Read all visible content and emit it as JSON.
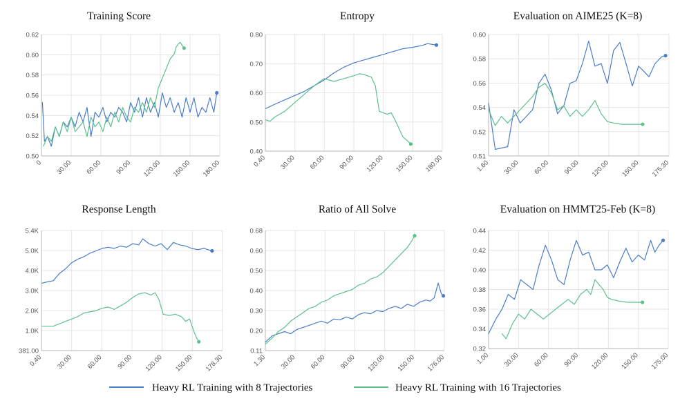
{
  "legend": [
    {
      "label": "Heavy RL Training with 8 Trajectories",
      "color": "#4a7cc9"
    },
    {
      "label": "Heavy RL Training with 16 Trajectories",
      "color": "#5cc08c"
    }
  ],
  "chart_data": [
    {
      "type": "line",
      "title": "Training Score",
      "xlabel": "",
      "ylabel": "",
      "xlim": [
        0,
        180
      ],
      "ylim": [
        0.5,
        0.625
      ],
      "xticks": [
        "0",
        "30.00",
        "60.00",
        "90.00",
        "120.00",
        "150.00",
        "180.00"
      ],
      "yticks": [
        "0.50",
        "0.52",
        "0.54",
        "0.56",
        "0.58",
        "0.60",
        "0.62"
      ],
      "grid": true,
      "series": [
        {
          "name": "Heavy RL Training with 8 Trajectories",
          "color": "#4a7cc9",
          "x": [
            1,
            3,
            6,
            10,
            14,
            18,
            22,
            26,
            30,
            34,
            38,
            42,
            46,
            50,
            54,
            58,
            62,
            66,
            70,
            74,
            78,
            82,
            86,
            90,
            94,
            98,
            102,
            106,
            110,
            114,
            118,
            122,
            126,
            130,
            134,
            138,
            142,
            146,
            150,
            154,
            158,
            162,
            166,
            170,
            174,
            177
          ],
          "y": [
            0.555,
            0.515,
            0.52,
            0.51,
            0.53,
            0.52,
            0.535,
            0.53,
            0.54,
            0.53,
            0.545,
            0.535,
            0.55,
            0.52,
            0.545,
            0.54,
            0.55,
            0.535,
            0.545,
            0.54,
            0.55,
            0.545,
            0.535,
            0.555,
            0.545,
            0.56,
            0.54,
            0.56,
            0.545,
            0.555,
            0.54,
            0.565,
            0.55,
            0.56,
            0.545,
            0.555,
            0.54,
            0.56,
            0.545,
            0.56,
            0.54,
            0.55,
            0.545,
            0.56,
            0.545,
            0.565
          ]
        },
        {
          "name": "Heavy RL Training with 16 Trajectories",
          "color": "#5cc08c",
          "x": [
            2,
            6,
            10,
            14,
            18,
            22,
            26,
            30,
            34,
            38,
            42,
            46,
            50,
            54,
            58,
            62,
            66,
            70,
            74,
            78,
            82,
            86,
            90,
            94,
            98,
            102,
            106,
            110,
            114,
            118,
            122,
            126,
            130,
            134,
            136,
            138,
            140,
            142,
            144
          ],
          "y": [
            0.51,
            0.52,
            0.515,
            0.53,
            0.52,
            0.535,
            0.525,
            0.54,
            0.525,
            0.53,
            0.535,
            0.52,
            0.54,
            0.53,
            0.535,
            0.525,
            0.54,
            0.53,
            0.545,
            0.535,
            0.55,
            0.54,
            0.535,
            0.55,
            0.545,
            0.555,
            0.545,
            0.56,
            0.55,
            0.57,
            0.58,
            0.59,
            0.6,
            0.605,
            0.612,
            0.615,
            0.617,
            0.614,
            0.611
          ]
        }
      ]
    },
    {
      "type": "line",
      "title": "Entropy",
      "xlabel": "",
      "ylabel": "",
      "xlim": [
        0.4,
        180
      ],
      "ylim": [
        0.39,
        0.8
      ],
      "xticks": [
        "0.40",
        "30.00",
        "60.00",
        "90.00",
        "120.00",
        "150.00",
        "180.00"
      ],
      "yticks": [
        "0.40",
        "0.50",
        "0.60",
        "0.70",
        "0.80"
      ],
      "grid": true,
      "series": [
        {
          "name": "Heavy RL Training with 8 Trajectories",
          "color": "#4a7cc9",
          "x": [
            1,
            10,
            20,
            30,
            40,
            50,
            60,
            70,
            80,
            90,
            100,
            110,
            120,
            130,
            140,
            150,
            160,
            165,
            170,
            174
          ],
          "y": [
            0.54,
            0.555,
            0.57,
            0.585,
            0.6,
            0.62,
            0.64,
            0.665,
            0.685,
            0.7,
            0.71,
            0.72,
            0.73,
            0.74,
            0.75,
            0.755,
            0.762,
            0.768,
            0.765,
            0.763
          ]
        },
        {
          "name": "Heavy RL Training with 16 Trajectories",
          "color": "#5cc08c",
          "x": [
            1,
            5,
            10,
            20,
            30,
            40,
            50,
            60,
            70,
            80,
            90,
            96,
            100,
            104,
            108,
            112,
            116,
            120,
            124,
            128,
            132,
            136,
            140,
            145,
            148
          ],
          "y": [
            0.5,
            0.495,
            0.51,
            0.53,
            0.56,
            0.59,
            0.62,
            0.645,
            0.635,
            0.645,
            0.655,
            0.662,
            0.66,
            0.655,
            0.65,
            0.62,
            0.53,
            0.525,
            0.52,
            0.525,
            0.5,
            0.47,
            0.44,
            0.425,
            0.415
          ]
        }
      ]
    },
    {
      "type": "line",
      "title": "Evaluation on AIME25 (K=8)",
      "xlabel": "",
      "ylabel": "",
      "xlim": [
        1.6,
        175.3
      ],
      "ylim": [
        0.51,
        0.602
      ],
      "xticks": [
        "1.60",
        "30.00",
        "60.00",
        "90.00",
        "120.00",
        "150.00",
        "175.30"
      ],
      "yticks": [
        "0.51",
        "0.52",
        "0.54",
        "0.56",
        "0.58",
        "0.60"
      ],
      "grid": true,
      "series": [
        {
          "name": "Heavy RL Training with 8 Trajectories",
          "color": "#4a7cc9",
          "x": [
            1.6,
            8,
            14,
            20,
            26,
            32,
            38,
            44,
            50,
            56,
            62,
            68,
            74,
            80,
            86,
            92,
            98,
            104,
            110,
            116,
            122,
            128,
            134,
            140,
            146,
            150,
            156,
            162,
            168,
            172
          ],
          "y": [
            0.55,
            0.515,
            0.516,
            0.517,
            0.545,
            0.535,
            0.54,
            0.545,
            0.565,
            0.572,
            0.56,
            0.542,
            0.548,
            0.565,
            0.567,
            0.58,
            0.597,
            0.578,
            0.58,
            0.565,
            0.59,
            0.596,
            0.58,
            0.563,
            0.578,
            0.575,
            0.57,
            0.58,
            0.585,
            0.586
          ]
        },
        {
          "name": "Heavy RL Training with 16 Trajectories",
          "color": "#5cc08c",
          "x": [
            1.6,
            8,
            14,
            20,
            26,
            32,
            38,
            44,
            50,
            56,
            62,
            68,
            74,
            80,
            86,
            92,
            98,
            104,
            110,
            116,
            122,
            130,
            140,
            150
          ],
          "y": [
            0.545,
            0.533,
            0.54,
            0.535,
            0.54,
            0.545,
            0.55,
            0.555,
            0.562,
            0.565,
            0.558,
            0.545,
            0.548,
            0.54,
            0.545,
            0.54,
            0.545,
            0.552,
            0.542,
            0.536,
            0.535,
            0.534,
            0.534,
            0.534
          ]
        }
      ]
    },
    {
      "type": "line",
      "title": "Response Length",
      "xlabel": "",
      "ylabel": "",
      "xlim": [
        0.4,
        178.3
      ],
      "ylim": [
        381,
        5400
      ],
      "xticks": [
        "0.40",
        "30.00",
        "60.00",
        "90.00",
        "120.00",
        "150.00",
        "178.30"
      ],
      "yticks": [
        "381.00",
        "1.0K",
        "2.0K",
        "3.0K",
        "4.0K",
        "5.0K",
        "5.4K"
      ],
      "grid": true,
      "series": [
        {
          "name": "Heavy RL Training with 8 Trajectories",
          "color": "#4a7cc9",
          "x": [
            1,
            6,
            12,
            18,
            24,
            30,
            36,
            42,
            48,
            54,
            60,
            66,
            72,
            78,
            84,
            90,
            96,
            100,
            106,
            112,
            118,
            124,
            130,
            136,
            142,
            148,
            154,
            160,
            164,
            168
          ],
          "y": [
            3200,
            3250,
            3300,
            3600,
            3800,
            4050,
            4200,
            4300,
            4450,
            4550,
            4650,
            4700,
            4650,
            4750,
            4700,
            4850,
            4800,
            5050,
            4850,
            4750,
            4850,
            4600,
            4900,
            4800,
            4750,
            4650,
            4600,
            4650,
            4600,
            4550
          ]
        },
        {
          "name": "Heavy RL Training with 16 Trajectories",
          "color": "#5cc08c",
          "x": [
            1,
            6,
            12,
            18,
            24,
            30,
            36,
            42,
            48,
            54,
            60,
            66,
            72,
            78,
            84,
            90,
            96,
            102,
            108,
            112,
            116,
            120,
            126,
            132,
            138,
            142,
            146,
            150,
            153,
            155
          ],
          "y": [
            1400,
            1400,
            1400,
            1500,
            1600,
            1700,
            1800,
            1950,
            2000,
            2050,
            2150,
            2200,
            2100,
            2250,
            2400,
            2600,
            2750,
            2800,
            2700,
            2800,
            2500,
            1900,
            1850,
            1900,
            1800,
            1600,
            1700,
            1200,
            900,
            750
          ]
        }
      ]
    },
    {
      "type": "line",
      "title": "Ratio of All Solve",
      "xlabel": "",
      "ylabel": "",
      "xlim": [
        1.3,
        176
      ],
      "ylim": [
        0.11,
        0.68
      ],
      "xticks": [
        "1.30",
        "30.00",
        "60.00",
        "90.00",
        "120.00",
        "150.00",
        "176.00"
      ],
      "yticks": [
        "0.11",
        "0.20",
        "0.30",
        "0.40",
        "0.50",
        "0.60",
        "0.68"
      ],
      "grid": true,
      "series": [
        {
          "name": "Heavy RL Training with 8 Trajectories",
          "color": "#4a7cc9",
          "x": [
            1.3,
            8,
            14,
            20,
            26,
            32,
            38,
            44,
            50,
            56,
            62,
            68,
            74,
            80,
            86,
            92,
            98,
            104,
            110,
            116,
            122,
            128,
            134,
            140,
            146,
            152,
            158,
            162,
            166,
            170,
            173,
            175
          ],
          "y": [
            0.15,
            0.18,
            0.19,
            0.2,
            0.19,
            0.21,
            0.22,
            0.23,
            0.24,
            0.25,
            0.24,
            0.26,
            0.255,
            0.27,
            0.26,
            0.28,
            0.29,
            0.285,
            0.3,
            0.295,
            0.31,
            0.32,
            0.31,
            0.33,
            0.32,
            0.34,
            0.35,
            0.345,
            0.36,
            0.43,
            0.38,
            0.37
          ]
        },
        {
          "name": "Heavy RL Training with 16 Trajectories",
          "color": "#5cc08c",
          "x": [
            1.3,
            8,
            14,
            20,
            26,
            32,
            38,
            44,
            50,
            56,
            62,
            68,
            74,
            80,
            86,
            92,
            98,
            104,
            110,
            116,
            122,
            128,
            134,
            140,
            144,
            147
          ],
          "y": [
            0.14,
            0.17,
            0.2,
            0.22,
            0.25,
            0.27,
            0.29,
            0.31,
            0.32,
            0.34,
            0.35,
            0.37,
            0.38,
            0.39,
            0.4,
            0.42,
            0.43,
            0.45,
            0.46,
            0.48,
            0.51,
            0.54,
            0.57,
            0.6,
            0.63,
            0.655
          ]
        }
      ]
    },
    {
      "type": "line",
      "title": "Evaluation on HMMT25-Feb (K=8)",
      "xlabel": "",
      "ylabel": "",
      "xlim": [
        1.0,
        175.0
      ],
      "ylim": [
        0.32,
        0.44
      ],
      "xticks": [
        "1.00",
        "30.00",
        "60.00",
        "90.00",
        "120.00",
        "150.00",
        "175.00"
      ],
      "yticks": [
        "0.32",
        "0.34",
        "0.36",
        "0.38",
        "0.40",
        "0.42",
        "0.44"
      ],
      "grid": true,
      "series": [
        {
          "name": "Heavy RL Training with 8 Trajectories",
          "color": "#4a7cc9",
          "x": [
            1,
            8,
            14,
            20,
            26,
            32,
            38,
            44,
            50,
            56,
            62,
            68,
            74,
            80,
            86,
            92,
            98,
            104,
            110,
            116,
            122,
            128,
            134,
            140,
            146,
            152,
            158,
            162,
            166,
            170
          ],
          "y": [
            0.335,
            0.35,
            0.36,
            0.375,
            0.37,
            0.39,
            0.385,
            0.38,
            0.405,
            0.425,
            0.41,
            0.39,
            0.385,
            0.41,
            0.43,
            0.415,
            0.418,
            0.4,
            0.4,
            0.405,
            0.392,
            0.408,
            0.422,
            0.408,
            0.415,
            0.41,
            0.43,
            0.418,
            0.425,
            0.43
          ]
        },
        {
          "name": "Heavy RL Training with 16 Trajectories",
          "color": "#5cc08c",
          "x": [
            14,
            18,
            24,
            30,
            36,
            42,
            48,
            54,
            60,
            66,
            72,
            78,
            84,
            90,
            96,
            100,
            104,
            108,
            112,
            116,
            120,
            128,
            136,
            144,
            150
          ],
          "y": [
            0.335,
            0.33,
            0.345,
            0.355,
            0.35,
            0.36,
            0.355,
            0.35,
            0.355,
            0.36,
            0.365,
            0.37,
            0.365,
            0.375,
            0.38,
            0.375,
            0.39,
            0.385,
            0.38,
            0.372,
            0.37,
            0.368,
            0.367,
            0.367,
            0.367
          ]
        }
      ]
    }
  ]
}
